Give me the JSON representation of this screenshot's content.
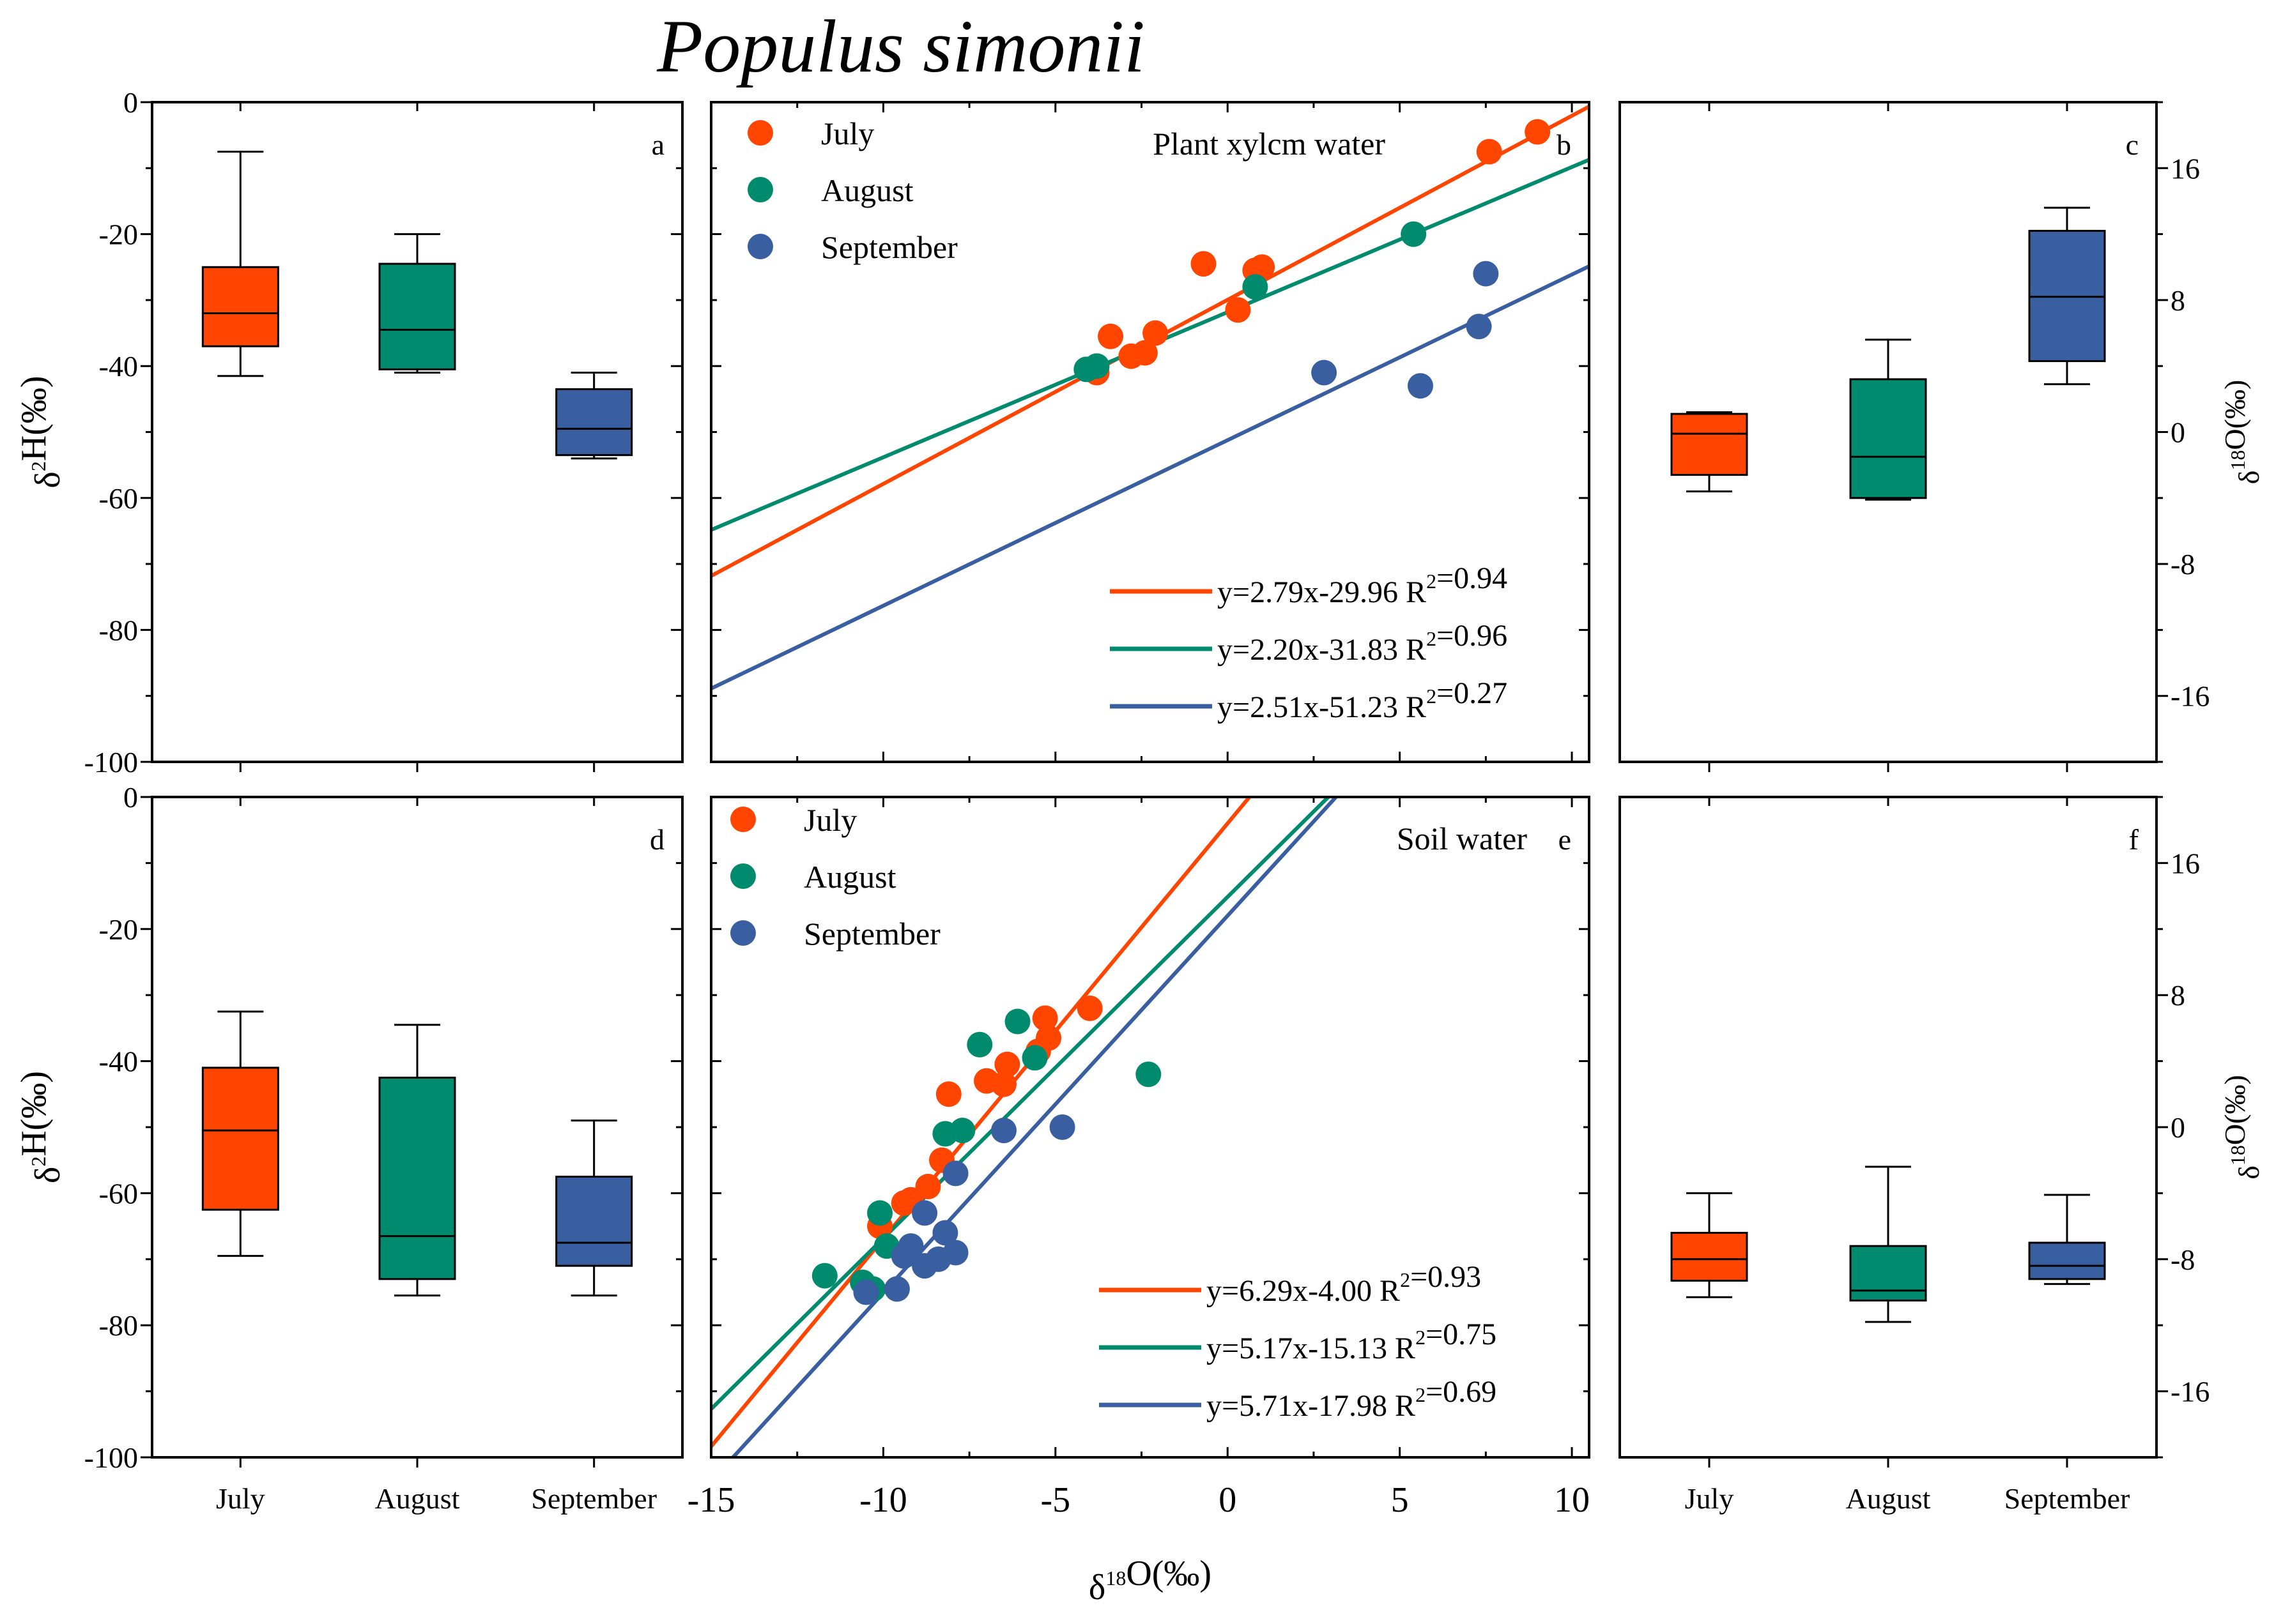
{
  "title": "Populus simonii",
  "colors": {
    "July": "#ff4500",
    "August": "#008b6e",
    "September": "#3a5fa0"
  },
  "chart_data": [
    {
      "id": "a",
      "type": "box",
      "panel_label": "a",
      "ylabel": "δ2H(‰)",
      "ylim": [
        -100,
        0
      ],
      "yticks": [
        0,
        -20,
        -40,
        -60,
        -80,
        -100
      ],
      "categories": [
        "July",
        "August",
        "September"
      ],
      "boxes": [
        {
          "name": "July",
          "whisker_low": -41.5,
          "q1": -37,
          "median": -32,
          "q3": -25,
          "whisker_high": -7.5
        },
        {
          "name": "August",
          "whisker_low": -41,
          "q1": -40.5,
          "median": -34.5,
          "q3": -24.5,
          "whisker_high": -20
        },
        {
          "name": "September",
          "whisker_low": -54,
          "q1": -53.5,
          "median": -49.5,
          "q3": -43.5,
          "whisker_high": -41
        }
      ]
    },
    {
      "id": "b",
      "type": "scatter",
      "panel_label": "b",
      "annotation": "Plant xylcm water",
      "xlim": [
        -15,
        10.5
      ],
      "ylim": [
        -100,
        0
      ],
      "series": [
        {
          "name": "July",
          "points": [
            [
              -3.8,
              -41
            ],
            [
              -3.4,
              -35.5
            ],
            [
              -2.8,
              -38.5
            ],
            [
              -2.4,
              -38
            ],
            [
              -2.1,
              -35
            ],
            [
              -0.7,
              -24.5
            ],
            [
              0.3,
              -31.5
            ],
            [
              0.8,
              -25.5
            ],
            [
              1.0,
              -25
            ],
            [
              7.6,
              -7.5
            ],
            [
              9.0,
              -4.5
            ]
          ],
          "fit_label": "y=2.79x-29.96 R2=0.94",
          "slope": 2.79,
          "intercept": -29.96
        },
        {
          "name": "August",
          "points": [
            [
              -4.1,
              -40.5
            ],
            [
              -3.8,
              -40
            ],
            [
              0.8,
              -28
            ],
            [
              5.4,
              -20
            ]
          ],
          "fit_label": "y=2.20x-31.83 R2=0.96",
          "slope": 2.2,
          "intercept": -31.83
        },
        {
          "name": "September",
          "points": [
            [
              2.8,
              -41
            ],
            [
              5.6,
              -43
            ],
            [
              7.3,
              -34
            ],
            [
              7.5,
              -26
            ]
          ],
          "fit_label": "y=2.51x-51.23 R2=0.27",
          "slope": 2.51,
          "intercept": -51.23
        }
      ]
    },
    {
      "id": "c",
      "type": "box",
      "panel_label": "c",
      "ylabel": "δ18O(‰)",
      "ylim": [
        -20,
        20
      ],
      "yticks": [
        16,
        8,
        0,
        -8,
        -16
      ],
      "categories": [
        "July",
        "August",
        "September"
      ],
      "boxes": [
        {
          "name": "July",
          "whisker_low": -3.6,
          "q1": -2.6,
          "median": -0.1,
          "q3": 1.1,
          "whisker_high": 1.2
        },
        {
          "name": "August",
          "whisker_low": -4.1,
          "q1": -4.0,
          "median": -1.5,
          "q3": 3.2,
          "whisker_high": 5.6
        },
        {
          "name": "September",
          "whisker_low": 2.9,
          "q1": 4.3,
          "median": 8.2,
          "q3": 12.2,
          "whisker_high": 13.6
        }
      ]
    },
    {
      "id": "d",
      "type": "box",
      "panel_label": "d",
      "ylabel": "δ2H(‰)",
      "ylim": [
        -100,
        0
      ],
      "yticks": [
        0,
        -20,
        -40,
        -60,
        -80,
        -100
      ],
      "categories": [
        "July",
        "August",
        "September"
      ],
      "boxes": [
        {
          "name": "July",
          "whisker_low": -69.5,
          "q1": -62.5,
          "median": -50.5,
          "q3": -41,
          "whisker_high": -32.5
        },
        {
          "name": "August",
          "whisker_low": -75.5,
          "q1": -73,
          "median": -66.5,
          "q3": -42.5,
          "whisker_high": -34.5
        },
        {
          "name": "September",
          "whisker_low": -75.5,
          "q1": -71,
          "median": -67.5,
          "q3": -57.5,
          "whisker_high": -49
        }
      ]
    },
    {
      "id": "e",
      "type": "scatter",
      "panel_label": "e",
      "annotation": "Soil water",
      "xlabel": "δ18O(‰)",
      "xlim": [
        -15,
        10.5
      ],
      "ylim": [
        -100,
        0
      ],
      "xticks": [
        -15,
        -10,
        -5,
        0,
        5,
        10
      ],
      "series": [
        {
          "name": "July",
          "points": [
            [
              -10.1,
              -65
            ],
            [
              -9.4,
              -61.5
            ],
            [
              -9.2,
              -61
            ],
            [
              -8.7,
              -59
            ],
            [
              -8.3,
              -55
            ],
            [
              -8.1,
              -45
            ],
            [
              -7.0,
              -43
            ],
            [
              -6.5,
              -43.5
            ],
            [
              -6.4,
              -40.5
            ],
            [
              -5.5,
              -38.5
            ],
            [
              -5.3,
              -33.5
            ],
            [
              -5.2,
              -36.5
            ],
            [
              -4.0,
              -32
            ]
          ],
          "fit_label": "y=6.29x-4.00  R2=0.93",
          "slope": 6.29,
          "intercept": -4.0
        },
        {
          "name": "August",
          "points": [
            [
              -11.7,
              -72.5
            ],
            [
              -10.6,
              -73.5
            ],
            [
              -10.3,
              -74.5
            ],
            [
              -10.1,
              -63
            ],
            [
              -9.9,
              -68
            ],
            [
              -8.2,
              -51
            ],
            [
              -7.7,
              -50.5
            ],
            [
              -7.2,
              -37.5
            ],
            [
              -6.1,
              -34
            ],
            [
              -5.6,
              -39.5
            ],
            [
              -2.3,
              -42
            ]
          ],
          "fit_label": "y=5.17x-15.13 R2=0.75",
          "slope": 5.17,
          "intercept": -15.13
        },
        {
          "name": "September",
          "points": [
            [
              -10.5,
              -75
            ],
            [
              -9.6,
              -74.5
            ],
            [
              -9.4,
              -69.5
            ],
            [
              -9.2,
              -68
            ],
            [
              -8.8,
              -63
            ],
            [
              -8.8,
              -71
            ],
            [
              -8.4,
              -70
            ],
            [
              -8.2,
              -66
            ],
            [
              -7.9,
              -69
            ],
            [
              -7.9,
              -57
            ],
            [
              -6.5,
              -50.5
            ],
            [
              -4.8,
              -50
            ]
          ],
          "fit_label": "y=5.71x-17.98 R2=0.69",
          "slope": 5.71,
          "intercept": -17.98
        }
      ]
    },
    {
      "id": "f",
      "type": "box",
      "panel_label": "f",
      "ylabel": "δ18O(‰)",
      "ylim": [
        -20,
        20
      ],
      "yticks": [
        16,
        8,
        0,
        -8,
        -16
      ],
      "categories": [
        "July",
        "August",
        "September"
      ],
      "boxes": [
        {
          "name": "July",
          "whisker_low": -10.3,
          "q1": -9.3,
          "median": -8.0,
          "q3": -6.4,
          "whisker_high": -4.0
        },
        {
          "name": "August",
          "whisker_low": -11.8,
          "q1": -10.5,
          "median": -9.9,
          "q3": -7.2,
          "whisker_high": -2.4
        },
        {
          "name": "September",
          "whisker_low": -9.5,
          "q1": -9.2,
          "median": -8.4,
          "q3": -7.0,
          "whisker_high": -4.1
        }
      ]
    }
  ]
}
